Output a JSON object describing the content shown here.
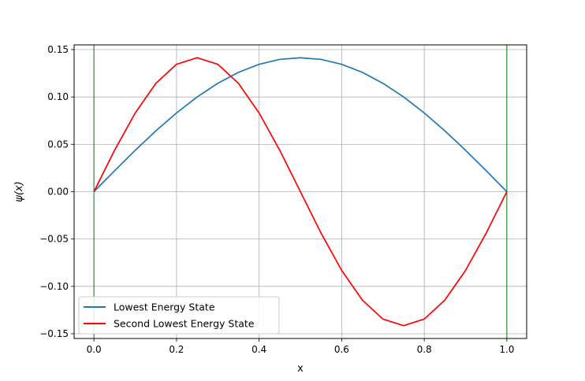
{
  "chart_data": {
    "type": "line",
    "title": "",
    "xlabel": "x",
    "ylabel": "ψ(x)",
    "xlim": [
      -0.048,
      1.048
    ],
    "ylim": [
      -0.155,
      0.155
    ],
    "xticks": [
      0.0,
      0.2,
      0.4,
      0.6,
      0.8,
      1.0
    ],
    "xtick_labels": [
      "0.0",
      "0.2",
      "0.4",
      "0.6",
      "0.8",
      "1.0"
    ],
    "yticks": [
      0.15,
      0.1,
      0.05,
      0.0,
      -0.05,
      -0.1,
      -0.15
    ],
    "ytick_labels": [
      "0.15",
      "0.10",
      "0.05",
      "0.00",
      "−0.05",
      "−0.10",
      "−0.15"
    ],
    "grid": true,
    "legend_position": "lower-left",
    "vlines": [
      {
        "x": 0.0,
        "color": "#008000"
      },
      {
        "x": 1.0,
        "color": "#008000"
      }
    ],
    "x": [
      0.0,
      0.05,
      0.1,
      0.15,
      0.2,
      0.25,
      0.3,
      0.35,
      0.4,
      0.45,
      0.5,
      0.55,
      0.6,
      0.65,
      0.7,
      0.75,
      0.8,
      0.85,
      0.9,
      0.95,
      1.0
    ],
    "series": [
      {
        "name": "Lowest Energy State",
        "color": "#1f77b4",
        "values": [
          0.0,
          0.0221,
          0.0437,
          0.0642,
          0.0831,
          0.1,
          0.1144,
          0.126,
          0.1345,
          0.1397,
          0.1414,
          0.1397,
          0.1345,
          0.126,
          0.1144,
          0.1,
          0.0831,
          0.0642,
          0.0437,
          0.0221,
          0.0
        ]
      },
      {
        "name": "Second Lowest Energy State",
        "color": "#ff0000",
        "values": [
          0.0,
          0.0437,
          0.0831,
          0.1144,
          0.1345,
          0.1414,
          0.1345,
          0.1144,
          0.0831,
          0.0437,
          0.0,
          -0.0437,
          -0.0831,
          -0.1144,
          -0.1345,
          -0.1414,
          -0.1345,
          -0.1144,
          -0.0831,
          -0.0437,
          0.0
        ]
      }
    ]
  }
}
